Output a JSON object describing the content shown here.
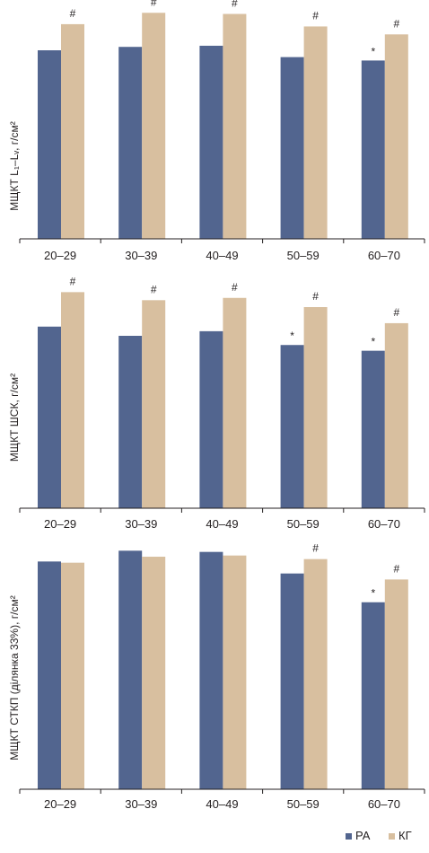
{
  "colors": {
    "series_ra": "#52658f",
    "series_kg": "#d8bf9f",
    "axis": "#231f20"
  },
  "chart_data": [
    {
      "type": "bar",
      "ylabel": "МЩКТ L₁–Lᵥ, г/см²",
      "categories": [
        "20–29",
        "30–39",
        "40–49",
        "50–59",
        "60–70"
      ],
      "ylim": [
        0,
        1
      ],
      "grid": false,
      "series": [
        {
          "name": "РА",
          "values": [
            0.83,
            0.845,
            0.85,
            0.8,
            0.785
          ],
          "marks": [
            "",
            "",
            "",
            "",
            "*"
          ]
        },
        {
          "name": "КГ",
          "values": [
            0.945,
            0.995,
            0.99,
            0.935,
            0.9
          ],
          "marks": [
            "#",
            "#",
            "#",
            "#",
            "#"
          ]
        }
      ]
    },
    {
      "type": "bar",
      "ylabel": "МЩКТ ШСК, г/см²",
      "categories": [
        "20–29",
        "30–39",
        "40–49",
        "50–59",
        "60–70"
      ],
      "ylim": [
        0,
        1
      ],
      "grid": false,
      "series": [
        {
          "name": "РА",
          "values": [
            0.79,
            0.75,
            0.77,
            0.71,
            0.685
          ],
          "marks": [
            "",
            "",
            "",
            "*",
            "*"
          ]
        },
        {
          "name": "КГ",
          "values": [
            0.94,
            0.905,
            0.915,
            0.875,
            0.805
          ],
          "marks": [
            "#",
            "#",
            "#",
            "#",
            "#"
          ]
        }
      ]
    },
    {
      "type": "bar",
      "ylabel": "МЩКТ СТКП (ділянка 33%), г/см²",
      "categories": [
        "20–29",
        "30–39",
        "40–49",
        "50–59",
        "60–70"
      ],
      "ylim": [
        0,
        1
      ],
      "grid": false,
      "series": [
        {
          "name": "РА",
          "values": [
            0.95,
            0.995,
            0.99,
            0.9,
            0.78
          ],
          "marks": [
            "",
            "",
            "",
            "",
            "*"
          ]
        },
        {
          "name": "КГ",
          "values": [
            0.945,
            0.97,
            0.975,
            0.96,
            0.875
          ],
          "marks": [
            "",
            "",
            "",
            "#",
            "#"
          ]
        }
      ]
    }
  ],
  "legend": {
    "items": [
      "РА",
      "КГ"
    ],
    "placement": "bottom-right"
  }
}
